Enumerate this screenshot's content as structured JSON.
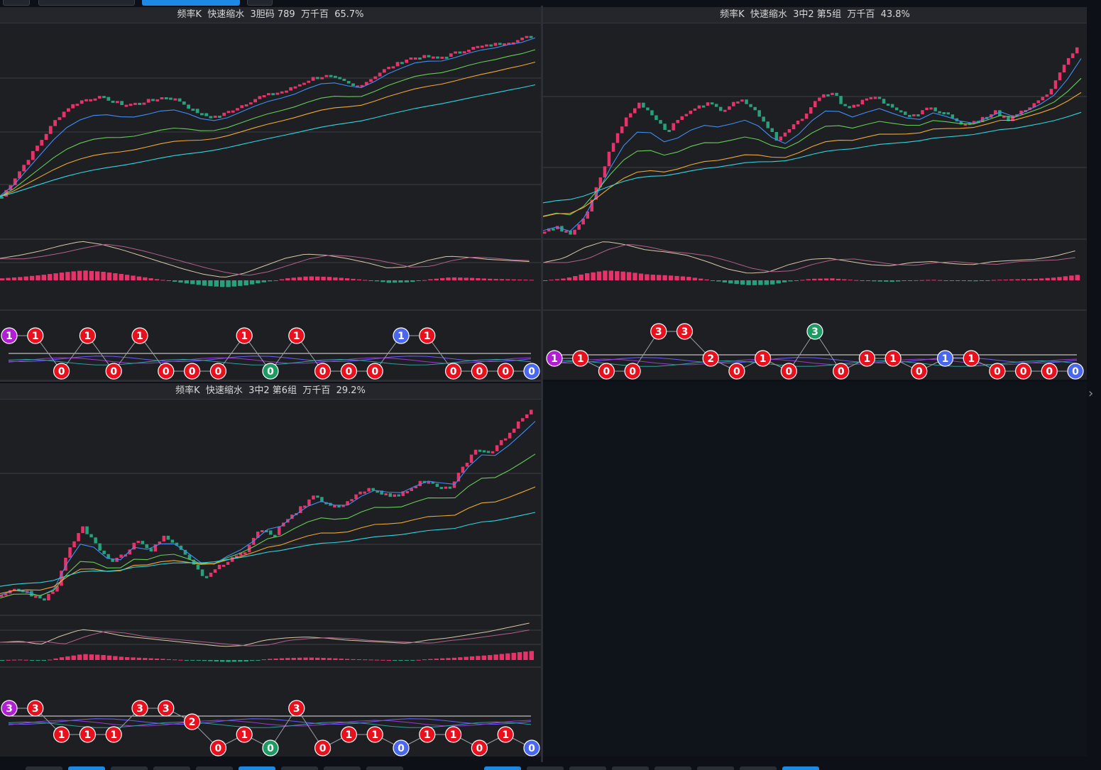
{
  "colors": {
    "up": "#e8336a",
    "down": "#26a17b",
    "ma": [
      "#3e8ef7",
      "#66cc55",
      "#f0a830",
      "#30d5e0"
    ],
    "macd_dif": "#d9c8a8",
    "macd_dea": "#b0608a",
    "ball_red": "#e8101c",
    "ball_purple": "#b21ed4",
    "ball_blue": "#4a67f0",
    "ball_green": "#1e9a63",
    "grid": "#3a3c42",
    "panel_bg": "#1e1f23"
  },
  "panels": [
    {
      "title": "频率K  快速缩水  3胆码 789  万千百  65.7%",
      "chart_data": {
        "type": "candlestick",
        "trend": [
          0.0,
          0.12,
          0.24,
          0.36,
          0.48,
          0.56,
          0.6,
          0.62,
          0.6,
          0.57,
          0.58,
          0.6,
          0.62,
          0.6,
          0.54,
          0.5,
          0.5,
          0.54,
          0.58,
          0.62,
          0.64,
          0.66,
          0.7,
          0.74,
          0.75,
          0.72,
          0.68,
          0.72,
          0.78,
          0.82,
          0.86,
          0.87,
          0.86,
          0.88,
          0.91,
          0.93,
          0.94,
          0.96,
          0.97,
          1.0
        ],
        "ma_start": [
          0.02,
          0.0,
          0.0,
          0.0
        ],
        "ma_end": [
          0.94,
          0.84,
          0.78,
          0.66
        ],
        "macd": [
          0.2,
          0.35,
          0.55,
          0.8,
          1.0,
          0.85,
          0.6,
          0.3,
          0.0,
          -0.3,
          -0.55,
          -0.7,
          -0.5,
          -0.15,
          0.2,
          0.4,
          0.35,
          0.2,
          0.0,
          -0.25,
          -0.2,
          0.1,
          0.3,
          0.25,
          0.15,
          0.1,
          0.05
        ],
        "balls_top": [
          {
            "t": "1",
            "c": "ball_purple"
          },
          {
            "t": "1",
            "c": "ball_red"
          },
          {
            "t": "",
            "c": ""
          },
          {
            "t": "1",
            "c": "ball_red"
          },
          {
            "t": "",
            "c": ""
          },
          {
            "t": "1",
            "c": "ball_red"
          },
          {
            "t": "",
            "c": ""
          },
          {
            "t": "",
            "c": ""
          },
          {
            "t": "",
            "c": ""
          },
          {
            "t": "1",
            "c": "ball_red"
          },
          {
            "t": "",
            "c": ""
          },
          {
            "t": "1",
            "c": "ball_red"
          },
          {
            "t": "",
            "c": ""
          },
          {
            "t": "",
            "c": ""
          },
          {
            "t": "",
            "c": ""
          },
          {
            "t": "1",
            "c": "ball_blue"
          },
          {
            "t": "1",
            "c": "ball_red"
          },
          {
            "t": "",
            "c": ""
          },
          {
            "t": "",
            "c": ""
          },
          {
            "t": "",
            "c": ""
          },
          {
            "t": "",
            "c": ""
          }
        ],
        "balls_bottom": [
          {
            "t": "",
            "c": ""
          },
          {
            "t": "",
            "c": ""
          },
          {
            "t": "0",
            "c": "ball_red"
          },
          {
            "t": "",
            "c": ""
          },
          {
            "t": "0",
            "c": "ball_red"
          },
          {
            "t": "",
            "c": ""
          },
          {
            "t": "0",
            "c": "ball_red"
          },
          {
            "t": "0",
            "c": "ball_red"
          },
          {
            "t": "0",
            "c": "ball_red"
          },
          {
            "t": "",
            "c": ""
          },
          {
            "t": "0",
            "c": "ball_green"
          },
          {
            "t": "",
            "c": ""
          },
          {
            "t": "0",
            "c": "ball_red"
          },
          {
            "t": "0",
            "c": "ball_red"
          },
          {
            "t": "0",
            "c": "ball_red"
          },
          {
            "t": "",
            "c": ""
          },
          {
            "t": "",
            "c": ""
          },
          {
            "t": "0",
            "c": "ball_red"
          },
          {
            "t": "0",
            "c": "ball_red"
          },
          {
            "t": "0",
            "c": "ball_red"
          },
          {
            "t": "0",
            "c": "ball_blue"
          }
        ]
      }
    },
    {
      "title": "频率K  快速缩水  3中2 第5组  万千百  43.8%",
      "chart_data": {
        "type": "candlestick",
        "trend": [
          0.02,
          0.04,
          0.0,
          0.1,
          0.28,
          0.46,
          0.6,
          0.66,
          0.6,
          0.52,
          0.6,
          0.64,
          0.66,
          0.62,
          0.68,
          0.66,
          0.58,
          0.48,
          0.54,
          0.6,
          0.68,
          0.72,
          0.64,
          0.66,
          0.7,
          0.66,
          0.62,
          0.6,
          0.64,
          0.62,
          0.58,
          0.55,
          0.58,
          0.62,
          0.58,
          0.62,
          0.66,
          0.72,
          0.84,
          0.94
        ],
        "ma_start": [
          0.04,
          0.16,
          0.12,
          0.18
        ],
        "ma_end": [
          0.72,
          0.66,
          0.64,
          0.58
        ],
        "macd": [
          0.0,
          0.2,
          0.7,
          1.0,
          0.85,
          0.6,
          0.5,
          0.35,
          0.05,
          -0.3,
          -0.5,
          -0.45,
          -0.1,
          0.15,
          0.2,
          0.05,
          -0.1,
          -0.15,
          0.0,
          0.05,
          -0.05,
          -0.1,
          0.05,
          0.1,
          0.15,
          0.3,
          0.55
        ],
        "balls_top": [
          {
            "t": "",
            "c": ""
          },
          {
            "t": "",
            "c": ""
          },
          {
            "t": "",
            "c": ""
          },
          {
            "t": "",
            "c": ""
          },
          {
            "t": "3",
            "c": "ball_red"
          },
          {
            "t": "3",
            "c": "ball_red"
          },
          {
            "t": "",
            "c": ""
          },
          {
            "t": "",
            "c": ""
          },
          {
            "t": "",
            "c": ""
          },
          {
            "t": "",
            "c": ""
          },
          {
            "t": "3",
            "c": "ball_green"
          },
          {
            "t": "",
            "c": ""
          },
          {
            "t": "",
            "c": ""
          },
          {
            "t": "",
            "c": ""
          },
          {
            "t": "",
            "c": ""
          },
          {
            "t": "",
            "c": ""
          },
          {
            "t": "",
            "c": ""
          },
          {
            "t": "",
            "c": ""
          },
          {
            "t": "",
            "c": ""
          },
          {
            "t": "",
            "c": ""
          },
          {
            "t": "",
            "c": ""
          }
        ],
        "balls_mid": [
          {
            "t": "1",
            "c": "ball_purple"
          },
          {
            "t": "1",
            "c": "ball_red"
          },
          {
            "t": "",
            "c": ""
          },
          {
            "t": "",
            "c": ""
          },
          {
            "t": "",
            "c": ""
          },
          {
            "t": "",
            "c": ""
          },
          {
            "t": "2",
            "c": "ball_red"
          },
          {
            "t": "",
            "c": ""
          },
          {
            "t": "1",
            "c": "ball_red"
          },
          {
            "t": "",
            "c": ""
          },
          {
            "t": "",
            "c": ""
          },
          {
            "t": "",
            "c": ""
          },
          {
            "t": "1",
            "c": "ball_red"
          },
          {
            "t": "1",
            "c": "ball_red"
          },
          {
            "t": "",
            "c": ""
          },
          {
            "t": "1",
            "c": "ball_blue"
          },
          {
            "t": "1",
            "c": "ball_red"
          },
          {
            "t": "",
            "c": ""
          },
          {
            "t": "",
            "c": ""
          },
          {
            "t": "",
            "c": ""
          },
          {
            "t": "",
            "c": ""
          }
        ],
        "balls_bottom": [
          {
            "t": "",
            "c": ""
          },
          {
            "t": "",
            "c": ""
          },
          {
            "t": "0",
            "c": "ball_red"
          },
          {
            "t": "0",
            "c": "ball_red"
          },
          {
            "t": "",
            "c": ""
          },
          {
            "t": "",
            "c": ""
          },
          {
            "t": "",
            "c": ""
          },
          {
            "t": "0",
            "c": "ball_red"
          },
          {
            "t": "",
            "c": ""
          },
          {
            "t": "0",
            "c": "ball_red"
          },
          {
            "t": "",
            "c": ""
          },
          {
            "t": "0",
            "c": "ball_red"
          },
          {
            "t": "",
            "c": ""
          },
          {
            "t": "",
            "c": ""
          },
          {
            "t": "0",
            "c": "ball_red"
          },
          {
            "t": "",
            "c": ""
          },
          {
            "t": "",
            "c": ""
          },
          {
            "t": "0",
            "c": "ball_red"
          },
          {
            "t": "0",
            "c": "ball_red"
          },
          {
            "t": "0",
            "c": "ball_red"
          },
          {
            "t": "0",
            "c": "ball_blue"
          }
        ]
      }
    },
    {
      "title": "频率K  快速缩水  3中2 第6组  万千百  29.2%",
      "chart_data": {
        "type": "candlestick",
        "trend": [
          0.05,
          0.08,
          0.06,
          0.02,
          0.08,
          0.3,
          0.4,
          0.3,
          0.22,
          0.26,
          0.34,
          0.28,
          0.36,
          0.3,
          0.22,
          0.14,
          0.2,
          0.24,
          0.28,
          0.4,
          0.36,
          0.44,
          0.5,
          0.56,
          0.52,
          0.5,
          0.56,
          0.6,
          0.58,
          0.56,
          0.6,
          0.64,
          0.62,
          0.6,
          0.72,
          0.8,
          0.78,
          0.86,
          0.94,
          1.0
        ],
        "ma_start": [
          0.04,
          0.02,
          0.06,
          0.1
        ],
        "ma_end": [
          0.8,
          0.6,
          0.48,
          0.42
        ],
        "macd": [
          0.0,
          0.05,
          -0.1,
          0.3,
          0.6,
          0.5,
          0.3,
          0.2,
          0.1,
          0.0,
          -0.1,
          -0.2,
          -0.15,
          0.1,
          0.2,
          0.25,
          0.2,
          0.1,
          0.05,
          0.0,
          -0.05,
          0.1,
          0.2,
          0.35,
          0.5,
          0.7,
          0.9
        ],
        "balls_top": [
          {
            "t": "3",
            "c": "ball_purple"
          },
          {
            "t": "3",
            "c": "ball_red"
          },
          {
            "t": "",
            "c": ""
          },
          {
            "t": "",
            "c": ""
          },
          {
            "t": "",
            "c": ""
          },
          {
            "t": "3",
            "c": "ball_red"
          },
          {
            "t": "3",
            "c": "ball_red"
          },
          {
            "t": "",
            "c": ""
          },
          {
            "t": "",
            "c": ""
          },
          {
            "t": "",
            "c": ""
          },
          {
            "t": "",
            "c": ""
          },
          {
            "t": "3",
            "c": "ball_red"
          },
          {
            "t": "",
            "c": ""
          },
          {
            "t": "",
            "c": ""
          },
          {
            "t": "",
            "c": ""
          },
          {
            "t": "",
            "c": ""
          },
          {
            "t": "",
            "c": ""
          },
          {
            "t": "",
            "c": ""
          },
          {
            "t": "",
            "c": ""
          },
          {
            "t": "",
            "c": ""
          },
          {
            "t": "",
            "c": ""
          }
        ],
        "balls_mid": [
          {
            "t": "",
            "c": ""
          },
          {
            "t": "",
            "c": ""
          },
          {
            "t": "",
            "c": ""
          },
          {
            "t": "",
            "c": ""
          },
          {
            "t": "",
            "c": ""
          },
          {
            "t": "",
            "c": ""
          },
          {
            "t": "",
            "c": ""
          },
          {
            "t": "2",
            "c": "ball_red"
          },
          {
            "t": "",
            "c": ""
          },
          {
            "t": "",
            "c": ""
          },
          {
            "t": "",
            "c": ""
          },
          {
            "t": "",
            "c": ""
          },
          {
            "t": "",
            "c": ""
          },
          {
            "t": "",
            "c": ""
          },
          {
            "t": "",
            "c": ""
          },
          {
            "t": "",
            "c": ""
          },
          {
            "t": "",
            "c": ""
          },
          {
            "t": "",
            "c": ""
          },
          {
            "t": "",
            "c": ""
          },
          {
            "t": "",
            "c": ""
          },
          {
            "t": "",
            "c": ""
          }
        ],
        "balls_low": [
          {
            "t": "",
            "c": ""
          },
          {
            "t": "",
            "c": ""
          },
          {
            "t": "1",
            "c": "ball_red"
          },
          {
            "t": "1",
            "c": "ball_red"
          },
          {
            "t": "1",
            "c": "ball_red"
          },
          {
            "t": "",
            "c": ""
          },
          {
            "t": "",
            "c": ""
          },
          {
            "t": "",
            "c": ""
          },
          {
            "t": "",
            "c": ""
          },
          {
            "t": "1",
            "c": "ball_red"
          },
          {
            "t": "",
            "c": ""
          },
          {
            "t": "",
            "c": ""
          },
          {
            "t": "",
            "c": ""
          },
          {
            "t": "1",
            "c": "ball_red"
          },
          {
            "t": "1",
            "c": "ball_red"
          },
          {
            "t": "",
            "c": ""
          },
          {
            "t": "1",
            "c": "ball_red"
          },
          {
            "t": "1",
            "c": "ball_red"
          },
          {
            "t": "",
            "c": ""
          },
          {
            "t": "1",
            "c": "ball_red"
          },
          {
            "t": "",
            "c": ""
          }
        ],
        "balls_bottom": [
          {
            "t": "",
            "c": ""
          },
          {
            "t": "",
            "c": ""
          },
          {
            "t": "",
            "c": ""
          },
          {
            "t": "",
            "c": ""
          },
          {
            "t": "",
            "c": ""
          },
          {
            "t": "",
            "c": ""
          },
          {
            "t": "",
            "c": ""
          },
          {
            "t": "",
            "c": ""
          },
          {
            "t": "0",
            "c": "ball_red"
          },
          {
            "t": "",
            "c": ""
          },
          {
            "t": "0",
            "c": "ball_green"
          },
          {
            "t": "",
            "c": ""
          },
          {
            "t": "0",
            "c": "ball_red"
          },
          {
            "t": "",
            "c": ""
          },
          {
            "t": "",
            "c": ""
          },
          {
            "t": "0",
            "c": "ball_blue"
          },
          {
            "t": "",
            "c": ""
          },
          {
            "t": "",
            "c": ""
          },
          {
            "t": "0",
            "c": "ball_red"
          },
          {
            "t": "",
            "c": ""
          },
          {
            "t": "0",
            "c": "ball_blue"
          }
        ]
      }
    }
  ]
}
